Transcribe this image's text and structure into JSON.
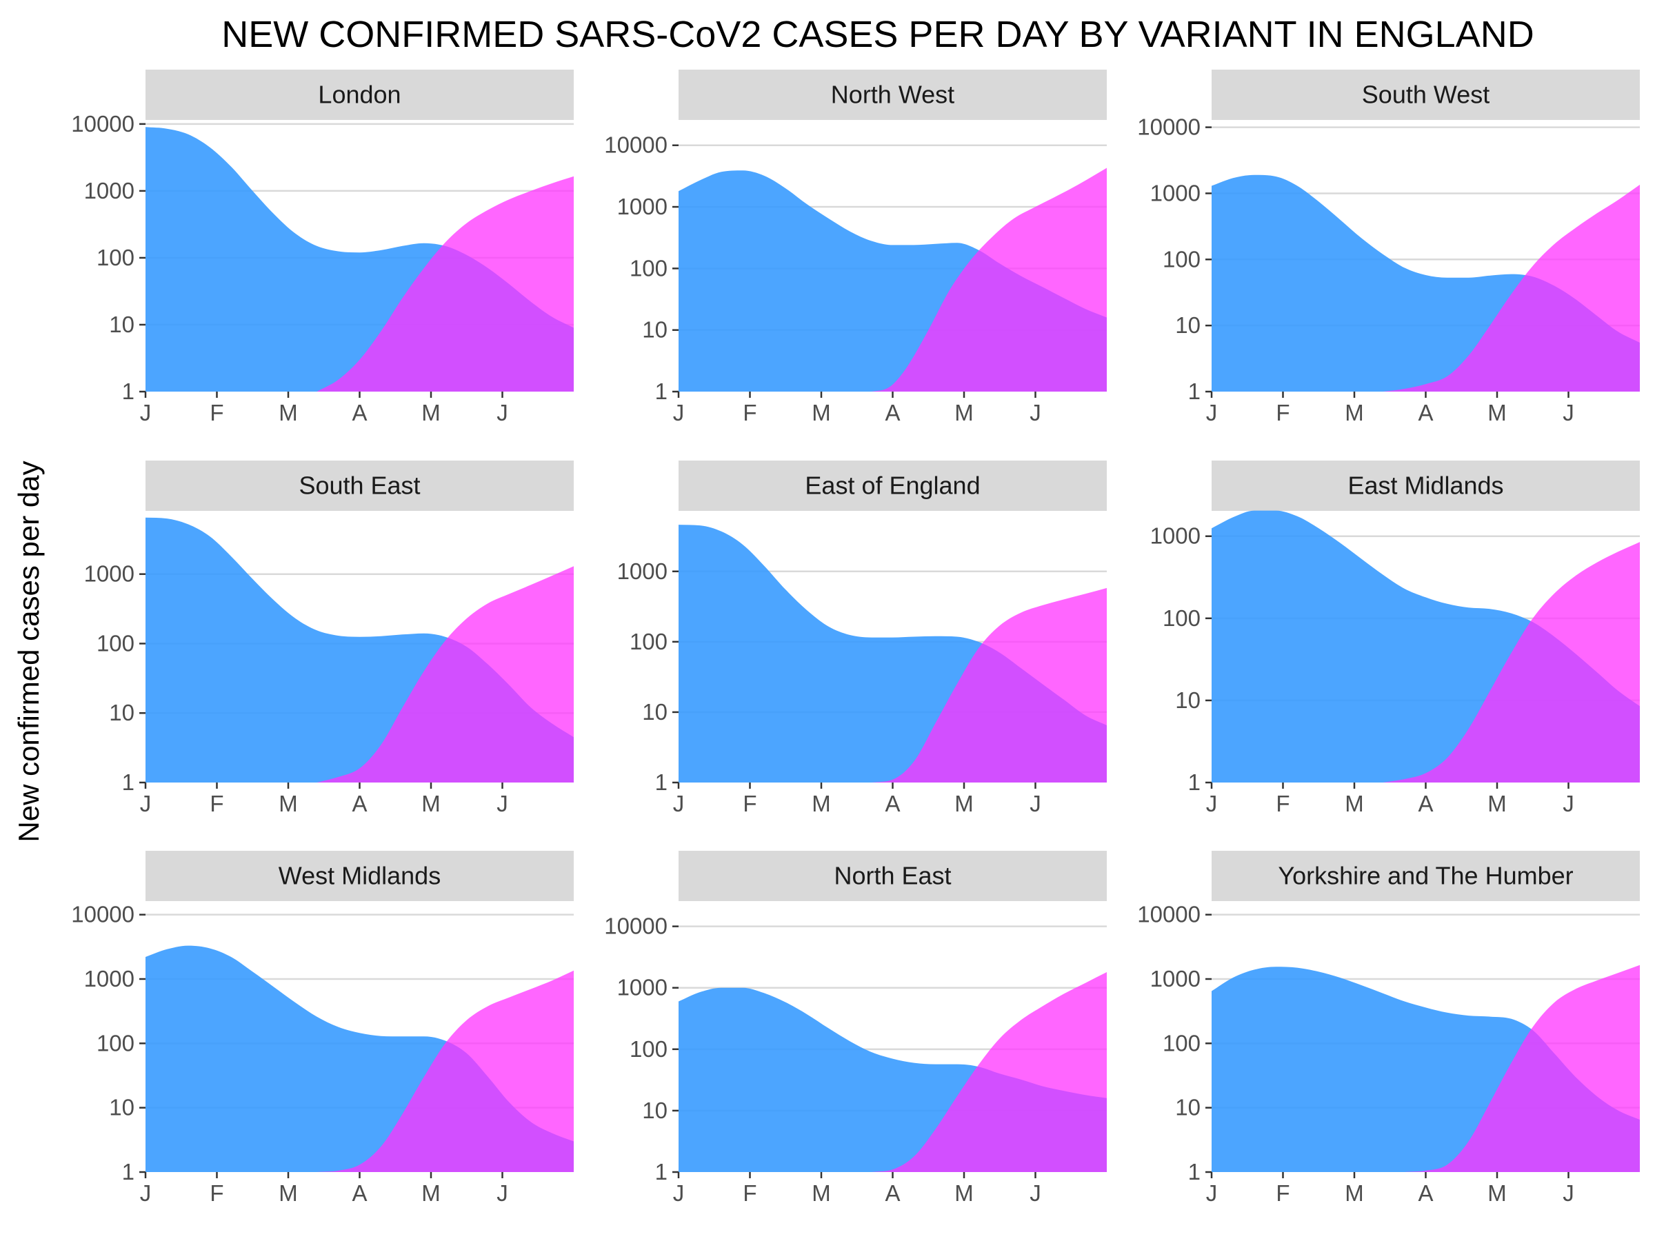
{
  "chart_data": {
    "type": "area",
    "title": "NEW CONFIRMED SARS-CoV2 CASES PER DAY BY VARIANT IN ENGLAND",
    "ylabel": "New confirmed cases per day",
    "xlabel": "",
    "y_scale": "log10",
    "grid": "horizontal major lines",
    "legend": "none",
    "x_ticks": [
      "J",
      "F",
      "M",
      "A",
      "M",
      "J"
    ],
    "x_tick_positions": [
      0,
      1,
      2,
      3,
      4,
      5
    ],
    "x_unit": "months (0 = start of January)",
    "x_range": [
      0,
      6
    ],
    "colors": {
      "series1": "#3399ff",
      "series2": "#ff33ff",
      "strip": "#d9d9d9",
      "grid": "#d9d9d9",
      "axis_text": "#4d4d4d"
    },
    "series_colors": [
      "#3399ff",
      "#ff33ff"
    ],
    "panels": [
      {
        "name": "London",
        "ylim": [
          1,
          10000
        ],
        "y_ticks": [
          "1",
          "10",
          "100",
          "1000",
          "10000"
        ],
        "series": [
          {
            "x": [
              0,
              0.3,
              0.6,
              0.9,
              1.2,
              1.5,
              1.8,
              2.1,
              2.4,
              2.7,
              3.0,
              3.3,
              3.6,
              3.9,
              4.2,
              4.5,
              4.8,
              5.1,
              5.4,
              5.7,
              6.0
            ],
            "values": [
              9000,
              8500,
              7000,
              4500,
              2300,
              1000,
              450,
              230,
              150,
              125,
              120,
              130,
              150,
              165,
              150,
              110,
              70,
              40,
              22,
              13,
              9
            ]
          },
          {
            "x": [
              2.4,
              2.7,
              3.0,
              3.3,
              3.6,
              3.9,
              4.2,
              4.5,
              4.8,
              5.1,
              5.4,
              5.7,
              6.0
            ],
            "values": [
              1,
              1.5,
              3,
              8,
              25,
              70,
              170,
              330,
              520,
              750,
              1000,
              1300,
              1650
            ]
          }
        ]
      },
      {
        "name": "North West",
        "ylim": [
          1,
          10000
        ],
        "y_ticks": [
          "1",
          "10",
          "100",
          "1000",
          "10000"
        ],
        "series": [
          {
            "x": [
              0,
              0.3,
              0.6,
              0.9,
              1.2,
              1.5,
              1.8,
              2.1,
              2.4,
              2.7,
              3.0,
              3.3,
              3.6,
              3.9,
              4.2,
              4.5,
              4.8,
              5.1,
              5.4,
              5.7,
              6.0
            ],
            "values": [
              1800,
              2700,
              3700,
              3900,
              3200,
              2000,
              1100,
              650,
              400,
              280,
              240,
              240,
              250,
              260,
              200,
              120,
              75,
              50,
              33,
              22,
              16
            ]
          },
          {
            "x": [
              2.7,
              2.9,
              3.0,
              3.2,
              3.5,
              3.8,
              4.1,
              4.4,
              4.7,
              5.0,
              5.3,
              5.6,
              6.0
            ],
            "values": [
              1,
              1.1,
              1.3,
              2.5,
              10,
              45,
              140,
              330,
              650,
              1000,
              1500,
              2300,
              4300
            ]
          }
        ]
      },
      {
        "name": "South West",
        "ylim": [
          1,
          10000
        ],
        "y_ticks": [
          "1",
          "10",
          "100",
          "1000",
          "10000"
        ],
        "series": [
          {
            "x": [
              0,
              0.3,
              0.6,
              0.9,
              1.2,
              1.5,
              1.8,
              2.1,
              2.4,
              2.7,
              3.0,
              3.3,
              3.6,
              3.9,
              4.2,
              4.5,
              4.8,
              5.1,
              5.4,
              5.7,
              6.0
            ],
            "values": [
              1300,
              1700,
              1900,
              1800,
              1300,
              750,
              400,
              210,
              120,
              75,
              58,
              53,
              53,
              57,
              60,
              55,
              40,
              25,
              14,
              8,
              5.5
            ]
          },
          {
            "x": [
              2.4,
              2.7,
              3.0,
              3.3,
              3.6,
              3.9,
              4.2,
              4.5,
              4.8,
              5.1,
              5.4,
              5.7,
              6.0
            ],
            "values": [
              1,
              1.1,
              1.3,
              1.7,
              3.5,
              10,
              30,
              80,
              170,
              300,
              500,
              800,
              1350
            ]
          }
        ]
      },
      {
        "name": "South East",
        "ylim": [
          1,
          10000
        ],
        "y_ticks": [
          "1",
          "10",
          "100",
          "1000"
        ],
        "series": [
          {
            "x": [
              0,
              0.3,
              0.6,
              0.9,
              1.2,
              1.5,
              1.8,
              2.1,
              2.4,
              2.7,
              3.0,
              3.3,
              3.6,
              3.9,
              4.2,
              4.5,
              4.8,
              5.1,
              5.4,
              5.7,
              6.0
            ],
            "values": [
              6500,
              6300,
              5200,
              3500,
              1800,
              850,
              420,
              230,
              155,
              130,
              125,
              128,
              135,
              140,
              125,
              90,
              50,
              25,
              12,
              7,
              4.5
            ]
          },
          {
            "x": [
              2.4,
              2.7,
              3.0,
              3.3,
              3.6,
              3.9,
              4.2,
              4.5,
              4.8,
              5.1,
              5.4,
              5.7,
              6.0
            ],
            "values": [
              1,
              1.2,
              1.6,
              3.5,
              12,
              40,
              110,
              230,
              380,
              520,
              700,
              950,
              1300
            ]
          }
        ]
      },
      {
        "name": "East of England",
        "ylim": [
          1,
          10000
        ],
        "y_ticks": [
          "1",
          "10",
          "100",
          "1000"
        ],
        "series": [
          {
            "x": [
              0,
              0.3,
              0.6,
              0.9,
              1.2,
              1.5,
              1.8,
              2.1,
              2.4,
              2.7,
              3.0,
              3.3,
              3.6,
              3.9,
              4.2,
              4.5,
              4.8,
              5.1,
              5.4,
              5.7,
              6.0
            ],
            "values": [
              4600,
              4500,
              3700,
              2400,
              1200,
              550,
              280,
              165,
              125,
              115,
              115,
              118,
              120,
              118,
              100,
              70,
              42,
              25,
              15,
              9,
              6.5
            ]
          },
          {
            "x": [
              2.7,
              3.0,
              3.3,
              3.6,
              3.9,
              4.2,
              4.5,
              4.8,
              5.1,
              5.4,
              5.7,
              6.0
            ],
            "values": [
              1,
              1.1,
              2,
              7,
              25,
              80,
              170,
              260,
              330,
              400,
              480,
              580
            ]
          }
        ]
      },
      {
        "name": "East Midlands",
        "ylim": [
          1,
          3000
        ],
        "y_ticks": [
          "1",
          "10",
          "100",
          "1000"
        ],
        "series": [
          {
            "x": [
              0,
              0.3,
              0.6,
              0.9,
              1.2,
              1.5,
              1.8,
              2.1,
              2.4,
              2.7,
              3.0,
              3.3,
              3.6,
              3.9,
              4.2,
              4.5,
              4.8,
              5.1,
              5.4,
              5.7,
              6.0
            ],
            "values": [
              1250,
              1700,
              2050,
              2050,
              1750,
              1250,
              830,
              530,
              340,
              230,
              180,
              150,
              135,
              130,
              115,
              90,
              60,
              37,
              22,
              13,
              8.5
            ]
          },
          {
            "x": [
              2.4,
              2.7,
              3.0,
              3.3,
              3.6,
              3.9,
              4.2,
              4.5,
              4.8,
              5.1,
              5.4,
              5.7,
              6.0
            ],
            "values": [
              1,
              1.1,
              1.3,
              2,
              4.5,
              13,
              38,
              100,
              200,
              330,
              480,
              650,
              850
            ]
          }
        ]
      },
      {
        "name": "West Midlands",
        "ylim": [
          1,
          10000
        ],
        "y_ticks": [
          "1",
          "10",
          "100",
          "1000",
          "10000"
        ],
        "series": [
          {
            "x": [
              0,
              0.3,
              0.6,
              0.9,
              1.2,
              1.5,
              1.8,
              2.1,
              2.4,
              2.7,
              3.0,
              3.3,
              3.6,
              3.9,
              4.2,
              4.5,
              4.8,
              5.1,
              5.4,
              5.7,
              6.0
            ],
            "values": [
              2200,
              2900,
              3300,
              3000,
              2200,
              1300,
              750,
              430,
              260,
              180,
              145,
              130,
              128,
              128,
              110,
              70,
              30,
              12,
              6,
              4,
              3
            ]
          },
          {
            "x": [
              2.4,
              2.7,
              3.0,
              3.3,
              3.6,
              3.9,
              4.2,
              4.5,
              4.8,
              5.1,
              5.4,
              5.7,
              6.0
            ],
            "values": [
              1,
              1.05,
              1.3,
              2.5,
              8,
              30,
              100,
              230,
              380,
              520,
              700,
              950,
              1350
            ]
          }
        ]
      },
      {
        "name": "North East",
        "ylim": [
          1,
          10000
        ],
        "y_ticks": [
          "1",
          "10",
          "100",
          "1000",
          "10000"
        ],
        "series": [
          {
            "x": [
              0,
              0.3,
              0.6,
              0.9,
              1.2,
              1.5,
              1.8,
              2.1,
              2.4,
              2.7,
              3.0,
              3.3,
              3.6,
              3.9,
              4.2,
              4.5,
              4.8,
              5.1,
              5.4,
              5.7,
              6.0
            ],
            "values": [
              600,
              850,
              1000,
              1000,
              820,
              580,
              370,
              220,
              135,
              90,
              70,
              60,
              57,
              57,
              52,
              40,
              32,
              25,
              21,
              18,
              16
            ]
          },
          {
            "x": [
              2.7,
              3.0,
              3.3,
              3.6,
              3.9,
              4.2,
              4.5,
              4.8,
              5.1,
              5.4,
              5.7,
              6.0
            ],
            "values": [
              1,
              1.1,
              1.8,
              5,
              17,
              55,
              150,
              300,
              500,
              800,
              1200,
              1800
            ]
          }
        ]
      },
      {
        "name": "Yorkshire and The Humber",
        "ylim": [
          1,
          10000
        ],
        "y_ticks": [
          "1",
          "10",
          "100",
          "1000",
          "10000"
        ],
        "series": [
          {
            "x": [
              0,
              0.3,
              0.6,
              0.9,
              1.2,
              1.5,
              1.8,
              2.1,
              2.4,
              2.7,
              3.0,
              3.3,
              3.6,
              3.9,
              4.2,
              4.5,
              4.8,
              5.1,
              5.4,
              5.7,
              6.0
            ],
            "values": [
              650,
              1050,
              1400,
              1550,
              1500,
              1300,
              1050,
              800,
              600,
              450,
              360,
              300,
              270,
              260,
              240,
              160,
              70,
              30,
              15,
              9,
              6.5
            ]
          },
          {
            "x": [
              2.7,
              3.0,
              3.3,
              3.6,
              3.9,
              4.2,
              4.5,
              4.8,
              5.1,
              5.4,
              5.7,
              6.0
            ],
            "values": [
              1,
              1.05,
              1.3,
              3,
              12,
              50,
              180,
              430,
              700,
              950,
              1250,
              1650
            ]
          }
        ]
      }
    ]
  }
}
